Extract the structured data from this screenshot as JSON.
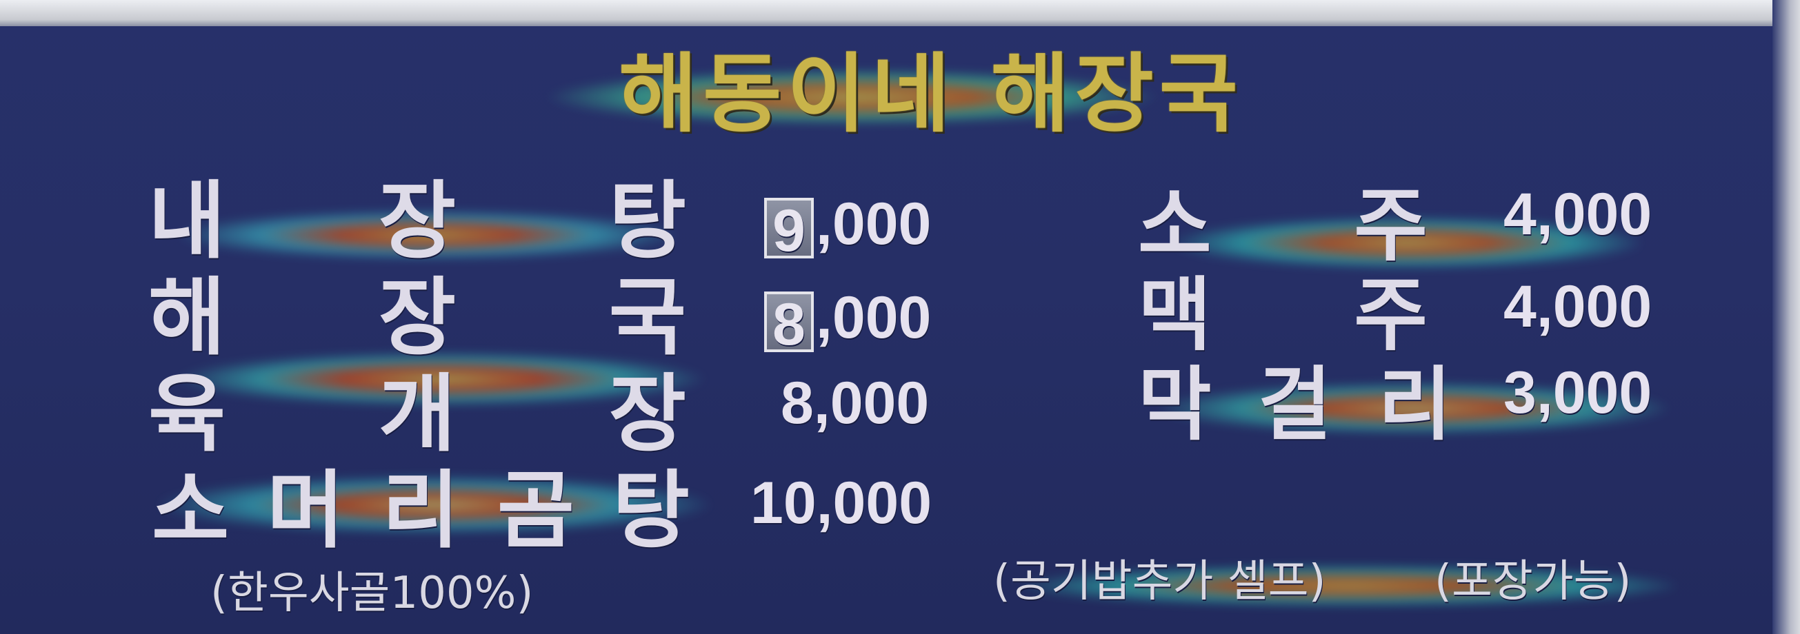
{
  "sign": {
    "title": "해동이네 해장국",
    "menu": [
      {
        "chars": [
          "내",
          "장",
          "탕"
        ],
        "price_boxed_digit": "9",
        "price_rest": ",000"
      },
      {
        "chars": [
          "해",
          "장",
          "국"
        ],
        "price_boxed_digit": "8",
        "price_rest": ",000"
      },
      {
        "chars": [
          "육",
          "개",
          "장"
        ],
        "price": "8,000"
      },
      {
        "chars": [
          "소",
          "머",
          "리",
          "곰",
          "탕"
        ],
        "price": "10,000"
      }
    ],
    "drinks": [
      {
        "chars": [
          "소",
          "주"
        ],
        "price": "4,000"
      },
      {
        "chars": [
          "맥",
          "주"
        ],
        "price": "4,000"
      },
      {
        "chars": [
          "막",
          "걸",
          "리"
        ],
        "price": "3,000"
      }
    ],
    "notes": {
      "beef_bone": "(한우사골100%)",
      "extra_rice": "(공기밥추가 셀프)",
      "takeout": "(포장가능)"
    },
    "colors": {
      "background": "#262f66",
      "title": "#c9b44a",
      "text": "#dedbe8"
    }
  }
}
